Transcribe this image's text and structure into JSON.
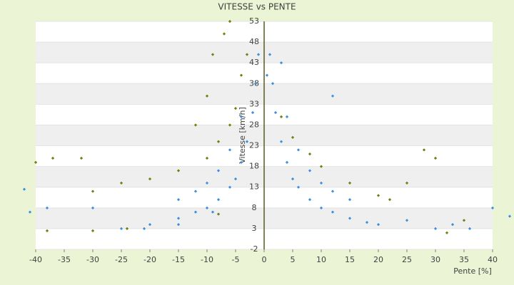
{
  "chart_data": {
    "type": "scatter",
    "title": "VITESSE vs PENTE",
    "x_label": "Pente [%]",
    "y_label": "Vitesse [km/h]",
    "xlim": [
      -40,
      40
    ],
    "xticks": [
      -40,
      -35,
      -30,
      -25,
      -20,
      -15,
      -10,
      -5,
      0,
      5,
      10,
      15,
      20,
      25,
      30,
      35,
      40
    ],
    "ylim": [
      -2,
      53
    ],
    "yticks": [
      -2,
      3,
      8,
      13,
      18,
      23,
      28,
      33,
      38,
      43,
      48,
      53
    ],
    "bands": true,
    "series": [
      {
        "color": "#3f8fdc",
        "x": [
          1,
          1.5,
          2,
          3,
          4,
          5,
          6,
          8,
          10,
          12,
          15,
          18,
          -1,
          -1.5,
          -2,
          -3,
          -4,
          -5,
          -6,
          -8,
          -10,
          -12,
          -15,
          -20,
          4,
          6,
          8,
          10,
          12,
          15,
          -4,
          -6,
          -8,
          -10,
          -12,
          -15,
          -42,
          -41,
          -38,
          43,
          40,
          30,
          25,
          20,
          33,
          36,
          -30,
          -25,
          -21,
          -15,
          -9,
          12,
          3,
          0.5
        ],
        "values": [
          45,
          38,
          31,
          24,
          19,
          15,
          13,
          10,
          8,
          7,
          5.5,
          4.5,
          45,
          38,
          31,
          24,
          19,
          15,
          13,
          10,
          8,
          7,
          5.5,
          4,
          30,
          22,
          17,
          14,
          12,
          10,
          30,
          22,
          17,
          14,
          12,
          10,
          12.5,
          7,
          8,
          6,
          8,
          3,
          5,
          4,
          4,
          3,
          8,
          3,
          3,
          4,
          7,
          35,
          43,
          40
        ]
      },
      {
        "color": "#7a7a10",
        "x": [
          3,
          5,
          8,
          10,
          15,
          20,
          22,
          -3,
          -4,
          -5,
          -6,
          -8,
          -10,
          -15,
          -20,
          -25,
          -30,
          -7,
          -6,
          -9,
          -10,
          -40,
          -38,
          -37,
          -32,
          -30,
          -24,
          30,
          28,
          32,
          35,
          25,
          -12,
          -8
        ],
        "values": [
          30,
          25,
          21,
          18,
          14,
          11,
          10,
          45,
          40,
          32,
          28,
          24,
          20,
          17,
          15,
          14,
          12,
          50,
          53,
          45,
          35,
          19,
          2.5,
          20,
          20,
          2.5,
          3,
          20,
          22,
          2,
          5,
          14,
          28,
          6.5
        ]
      }
    ]
  }
}
